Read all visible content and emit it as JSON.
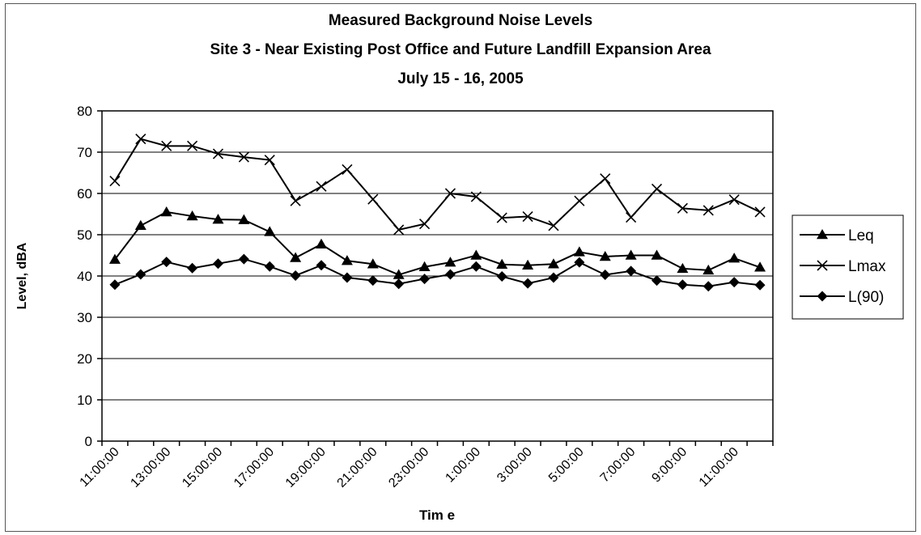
{
  "chart_data": {
    "type": "line",
    "title_lines": [
      "Measured Background Noise Levels",
      "Site 3 - Near Existing Post Office and Future Landfill Expansion Area",
      "July 15 - 16, 2005"
    ],
    "xlabel": "Tim e",
    "ylabel": "Level, dBA",
    "ylim": [
      0,
      80
    ],
    "yticks": [
      0,
      10,
      20,
      30,
      40,
      50,
      60,
      70,
      80
    ],
    "grid": "horizontal",
    "legend_position": "right",
    "x": [
      "11:00:00",
      "12:00:00",
      "13:00:00",
      "14:00:00",
      "15:00:00",
      "16:00:00",
      "17:00:00",
      "18:00:00",
      "19:00:00",
      "20:00:00",
      "21:00:00",
      "22:00:00",
      "23:00:00",
      "0:00:00",
      "1:00:00",
      "2:00:00",
      "3:00:00",
      "4:00:00",
      "5:00:00",
      "6:00:00",
      "7:00:00",
      "8:00:00",
      "9:00:00",
      "10:00:00",
      "11:00:00",
      "12:00:00"
    ],
    "xtick_labels": [
      "11:00:00",
      "13:00:00",
      "15:00:00",
      "17:00:00",
      "19:00:00",
      "21:00:00",
      "23:00:00",
      "1:00:00",
      "3:00:00",
      "5:00:00",
      "7:00:00",
      "9:00:00",
      "11:00:00"
    ],
    "series": [
      {
        "name": "Leq",
        "marker": "triangle",
        "values": [
          44,
          52.2,
          55.5,
          54.5,
          53.7,
          53.6,
          50.7,
          44.4,
          47.7,
          43.7,
          42.9,
          40.3,
          42.2,
          43.3,
          45,
          42.8,
          42.6,
          42.9,
          45.8,
          44.7,
          45,
          45,
          41.8,
          41.4,
          44.3,
          42.1
        ]
      },
      {
        "name": "Lmax",
        "marker": "x",
        "values": [
          63,
          73.2,
          71.5,
          71.5,
          69.6,
          68.8,
          68.1,
          58.2,
          61.7,
          65.8,
          58.6,
          51.2,
          52.6,
          60,
          59.2,
          54.1,
          54.4,
          52.2,
          58.2,
          63.6,
          54.2,
          61.1,
          56.4,
          55.9,
          58.5,
          55.5
        ]
      },
      {
        "name": "L(90)",
        "marker": "diamond",
        "values": [
          37.9,
          40.4,
          43.4,
          41.9,
          43,
          44.1,
          42.3,
          40.1,
          42.6,
          39.6,
          38.9,
          38.1,
          39.3,
          40.4,
          42.3,
          39.9,
          38.2,
          39.6,
          43.3,
          40.3,
          41.2,
          38.9,
          37.9,
          37.5,
          38.5,
          37.8
        ]
      }
    ]
  }
}
